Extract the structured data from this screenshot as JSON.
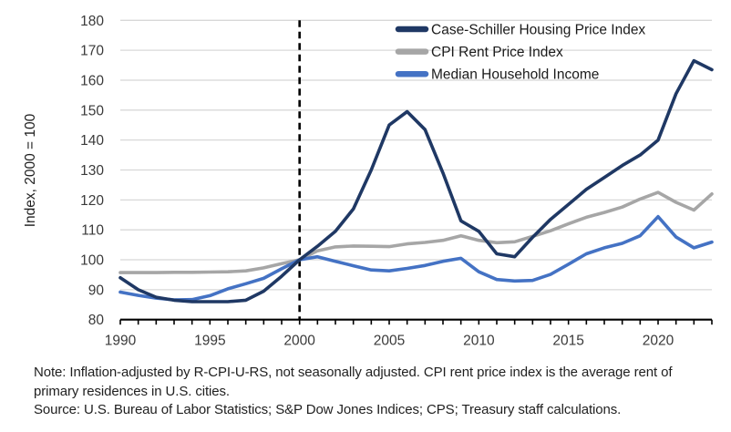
{
  "chart_data": {
    "type": "line",
    "title": "",
    "xlabel": "",
    "ylabel": "Index, 2000 = 100",
    "ylim": [
      80,
      180
    ],
    "ytick_step": 10,
    "xlim": [
      1990,
      2023
    ],
    "xticks_labeled": [
      1990,
      1995,
      2000,
      2005,
      2010,
      2015,
      2020
    ],
    "xtick_minor_step": 1,
    "grid": "horizontal",
    "gridline_color": "#d8d8d8",
    "axis_color": "#000000",
    "tick_label_color": "#3a3a3a",
    "legend_position": "top-right-inside",
    "reference_line": {
      "x": 2000,
      "style": "dashed",
      "color": "#000000"
    },
    "x": [
      1990,
      1991,
      1992,
      1993,
      1994,
      1995,
      1996,
      1997,
      1998,
      1999,
      2000,
      2001,
      2002,
      2003,
      2004,
      2005,
      2006,
      2007,
      2008,
      2009,
      2010,
      2011,
      2012,
      2013,
      2014,
      2015,
      2016,
      2017,
      2018,
      2019,
      2020,
      2021,
      2022,
      2023
    ],
    "series": [
      {
        "name": "Case-Schiller Housing Price Index",
        "color": "#1f3864",
        "values": [
          94,
          90,
          87.5,
          86.5,
          86,
          86,
          86,
          86.5,
          89.5,
          94.5,
          100,
          104.5,
          109.5,
          117,
          130,
          145,
          149.5,
          143.5,
          129,
          113,
          109.5,
          102,
          101,
          107.5,
          113.5,
          118.5,
          123.5,
          127.5,
          131.5,
          135,
          140,
          155.5,
          166.5,
          163.5
        ]
      },
      {
        "name": "CPI Rent Price Index",
        "color": "#a6a6a6",
        "values": [
          95.7,
          95.7,
          95.7,
          95.8,
          95.8,
          95.9,
          96,
          96.3,
          97.3,
          98.7,
          100,
          103,
          104.3,
          104.6,
          104.5,
          104.4,
          105.3,
          105.8,
          106.5,
          108,
          106.5,
          105.7,
          106,
          107.8,
          109.7,
          112,
          114.2,
          115.8,
          117.6,
          120.3,
          122.5,
          119.2,
          116.6,
          122
        ]
      },
      {
        "name": "Median Household Income",
        "color": "#4472c4",
        "values": [
          89.2,
          88.1,
          87.2,
          86.6,
          86.7,
          88,
          90.3,
          92,
          93.8,
          97,
          100,
          101,
          99.5,
          98,
          96.6,
          96.3,
          97.1,
          98.1,
          99.5,
          100.5,
          96,
          93.4,
          92.9,
          93.1,
          95.1,
          98.5,
          102,
          104,
          105.5,
          108,
          114.4,
          107.6,
          104,
          105.9
        ]
      }
    ]
  },
  "notes": {
    "note": "Note: Inflation-adjusted by R-CPI-U-RS, not seasonally adjusted. CPI rent price index is the average rent of primary residences in U.S. cities.",
    "source": "Source: U.S. Bureau of Labor Statistics; S&P Dow Jones Indices; CPS; Treasury staff calculations."
  }
}
